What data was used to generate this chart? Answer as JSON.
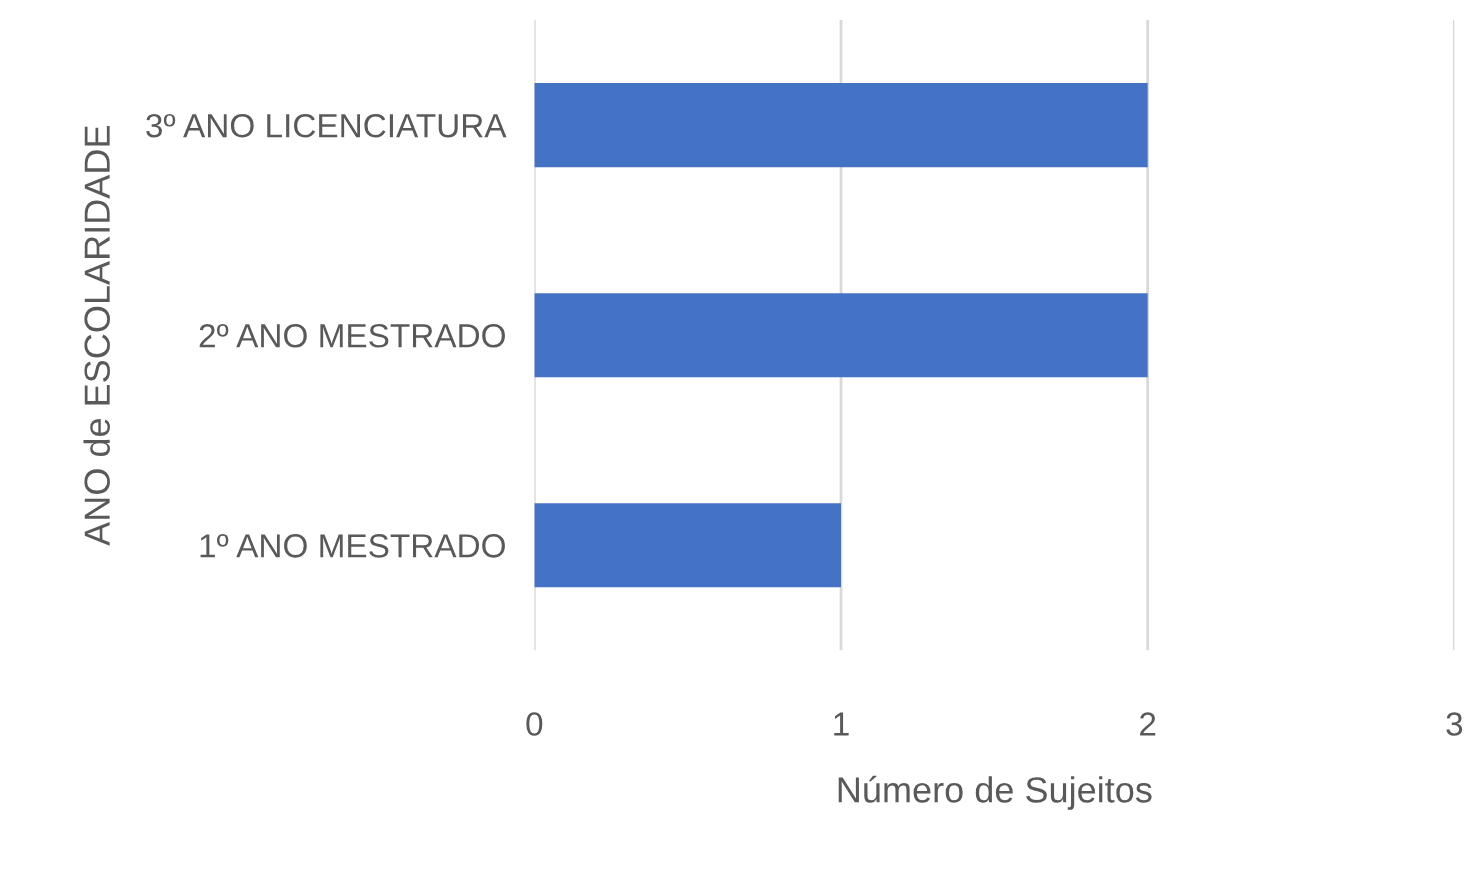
{
  "chart_data": {
    "type": "bar",
    "orientation": "horizontal",
    "categories": [
      "3º ANO LICENCIATURA",
      "2º ANO MESTRADO",
      "1º ANO MESTRADO"
    ],
    "values": [
      2,
      2,
      1
    ],
    "color": "#4472c4",
    "xlabel": "Número de Sujeitos",
    "ylabel": "ANO de ESCOLARIDADE",
    "xlim": [
      0,
      3
    ],
    "xticks": [
      0,
      1,
      2,
      3
    ],
    "grid": "x",
    "legend": false
  }
}
